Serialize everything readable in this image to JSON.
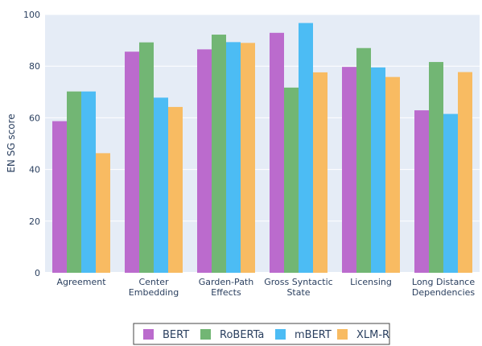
{
  "chart_data": {
    "type": "bar",
    "title": "",
    "xlabel": "",
    "ylabel": "EN SG score",
    "ylim": [
      0,
      100
    ],
    "yticks": [
      0,
      20,
      40,
      60,
      80,
      100
    ],
    "grid": true,
    "legend_position": "bottom",
    "categories": [
      [
        "Agreement"
      ],
      [
        "Center",
        "Embedding"
      ],
      [
        "Garden-Path",
        "Effects"
      ],
      [
        "Gross Syntactic",
        "State"
      ],
      [
        "Licensing"
      ],
      [
        "Long Distance",
        "Dependencies"
      ]
    ],
    "series": [
      {
        "name": "BERT",
        "color": "#bb6bcd",
        "values": [
          58.7,
          85.6,
          86.5,
          92.9,
          79.7,
          62.9
        ]
      },
      {
        "name": "RoBERTa",
        "color": "#72b674",
        "values": [
          70.2,
          89.2,
          92.2,
          71.7,
          87.0,
          81.6
        ]
      },
      {
        "name": "mBERT",
        "color": "#4cbcf4",
        "values": [
          70.2,
          67.8,
          89.3,
          96.7,
          79.5,
          61.5
        ]
      },
      {
        "name": "XLM-R",
        "color": "#f8bb62",
        "values": [
          46.3,
          64.2,
          89.0,
          77.6,
          75.8,
          77.7
        ]
      }
    ]
  }
}
